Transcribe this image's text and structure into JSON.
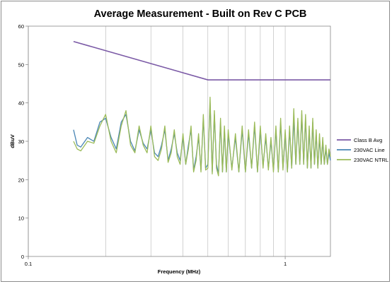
{
  "chart_data": {
    "type": "line",
    "title": "Average Measurement - Built on Rev C PCB",
    "xlabel": "Frequency (MHz)",
    "ylabel": "dBuV",
    "x_scale": "log",
    "xlim": [
      0.1,
      1.5
    ],
    "ylim": [
      0,
      60
    ],
    "x_ticks": [
      0.1,
      1
    ],
    "x_tick_labels": [
      "0.1",
      "1"
    ],
    "y_ticks": [
      0,
      10,
      20,
      30,
      40,
      50,
      60
    ],
    "y_tick_labels": [
      "0",
      "10",
      "20",
      "30",
      "40",
      "50",
      "60"
    ],
    "grid": "vertical minor and major lines on log x-axis",
    "legend_position": "right",
    "series": [
      {
        "name": "Class B Avg",
        "color": "#7b5aa6",
        "x": [
          0.15,
          0.5,
          0.5,
          1.5
        ],
        "y": [
          56,
          46,
          46,
          46
        ]
      },
      {
        "name": "230VAC Line",
        "color": "#4a86b5",
        "x": [
          0.15,
          0.155,
          0.16,
          0.17,
          0.18,
          0.19,
          0.2,
          0.21,
          0.22,
          0.23,
          0.24,
          0.25,
          0.26,
          0.27,
          0.28,
          0.29,
          0.3,
          0.31,
          0.32,
          0.33,
          0.34,
          0.35,
          0.36,
          0.37,
          0.38,
          0.39,
          0.4,
          0.41,
          0.42,
          0.43,
          0.44,
          0.45,
          0.46,
          0.47,
          0.48,
          0.49,
          0.5,
          0.51,
          0.52,
          0.53,
          0.54,
          0.55,
          0.56,
          0.57,
          0.58,
          0.59,
          0.6,
          0.62,
          0.64,
          0.66,
          0.68,
          0.7,
          0.72,
          0.74,
          0.76,
          0.78,
          0.8,
          0.82,
          0.84,
          0.86,
          0.88,
          0.9,
          0.92,
          0.94,
          0.96,
          0.98,
          1.0,
          1.02,
          1.04,
          1.06,
          1.08,
          1.1,
          1.12,
          1.14,
          1.16,
          1.18,
          1.2,
          1.22,
          1.24,
          1.26,
          1.28,
          1.3,
          1.32,
          1.34,
          1.36,
          1.38,
          1.4,
          1.42,
          1.44,
          1.46,
          1.48,
          1.5
        ],
        "y": [
          33,
          29,
          28.5,
          31,
          30,
          35,
          36,
          31,
          28,
          35,
          37,
          30,
          27.5,
          33,
          29.5,
          28,
          33,
          27,
          26,
          29,
          33,
          25,
          28,
          32,
          27,
          25,
          31,
          24,
          29,
          33,
          22.5,
          26,
          31,
          22.5,
          36,
          23,
          24,
          40,
          22,
          37,
          24,
          21.5,
          35,
          22,
          33,
          22,
          32,
          23,
          31,
          22,
          33,
          22,
          32,
          23,
          34,
          22,
          33,
          23.5,
          31,
          23,
          30,
          22.5,
          33,
          22,
          35,
          23,
          32,
          22,
          33,
          23,
          36,
          24,
          35,
          24,
          37,
          24,
          36,
          23,
          33,
          23,
          35,
          24,
          32,
          23,
          31,
          24,
          30,
          24,
          28,
          24,
          27,
          25
        ]
      },
      {
        "name": "230VAC NTRL",
        "color": "#9bbb59",
        "x": [
          0.15,
          0.155,
          0.16,
          0.17,
          0.18,
          0.19,
          0.2,
          0.21,
          0.22,
          0.23,
          0.24,
          0.25,
          0.26,
          0.27,
          0.28,
          0.29,
          0.3,
          0.31,
          0.32,
          0.33,
          0.34,
          0.35,
          0.36,
          0.37,
          0.38,
          0.39,
          0.4,
          0.41,
          0.42,
          0.43,
          0.44,
          0.45,
          0.46,
          0.47,
          0.48,
          0.49,
          0.5,
          0.51,
          0.52,
          0.53,
          0.54,
          0.55,
          0.56,
          0.57,
          0.58,
          0.59,
          0.6,
          0.62,
          0.64,
          0.66,
          0.68,
          0.7,
          0.72,
          0.74,
          0.76,
          0.78,
          0.8,
          0.82,
          0.84,
          0.86,
          0.88,
          0.9,
          0.92,
          0.94,
          0.96,
          0.98,
          1.0,
          1.02,
          1.04,
          1.06,
          1.08,
          1.1,
          1.12,
          1.14,
          1.16,
          1.18,
          1.2,
          1.22,
          1.24,
          1.26,
          1.28,
          1.3,
          1.32,
          1.34,
          1.36,
          1.38,
          1.4,
          1.42,
          1.44,
          1.46,
          1.48,
          1.5
        ],
        "y": [
          30,
          28,
          27.5,
          30,
          29.5,
          34,
          37,
          30,
          27,
          34,
          38,
          29,
          27,
          34,
          29,
          27,
          34,
          26,
          25,
          28,
          34,
          24.5,
          27,
          33,
          26,
          24,
          32,
          24,
          28,
          34,
          22,
          25,
          32,
          22,
          37,
          22.5,
          23,
          41.5,
          21.5,
          38,
          23,
          21,
          36,
          22,
          34,
          22,
          33,
          22.5,
          32,
          22,
          34,
          22,
          33,
          23,
          35,
          22,
          34,
          23,
          32,
          22.5,
          31,
          22,
          34,
          22,
          36,
          22.5,
          33,
          22,
          34,
          23,
          38.5,
          24,
          36,
          24,
          38,
          24,
          37,
          23,
          34,
          23,
          36,
          24,
          33,
          23,
          32,
          24,
          31,
          24,
          29,
          24,
          28,
          26
        ]
      }
    ]
  }
}
